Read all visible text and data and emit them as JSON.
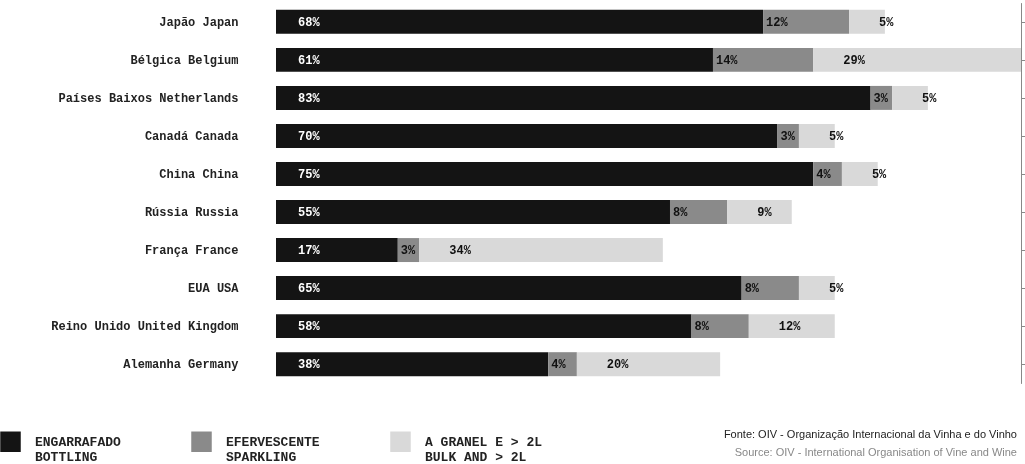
{
  "chart_data": {
    "type": "bar",
    "orientation": "horizontal",
    "stacked": true,
    "categories": [
      "Japão Japan",
      "Bélgica Belgium",
      "Países Baixos Netherlands",
      "Canadá Canada",
      "China China",
      "Rússia Russia",
      "França France",
      "EUA USA",
      "Reino Unido United Kingdom",
      "Alemanha Germany"
    ],
    "series": [
      {
        "name": "ENGARRAFADO\nBOTTLING",
        "color": "#141414",
        "values": [
          68,
          61,
          83,
          70,
          75,
          55,
          17,
          65,
          58,
          38
        ],
        "value_labels": [
          "68%",
          "61%",
          "83%",
          "70%",
          "75%",
          "55%",
          "17%",
          "65%",
          "58%",
          "38%"
        ]
      },
      {
        "name": "EFERVESCENTE\nSPARKLING",
        "color": "#8a8a8a",
        "values": [
          12,
          14,
          3,
          3,
          4,
          8,
          3,
          8,
          8,
          4
        ],
        "value_labels": [
          "12%",
          "14%",
          "3%",
          "3%",
          "4%",
          "8%",
          "3%",
          "8%",
          "8%",
          "4%"
        ]
      },
      {
        "name": "A GRANEL E > 2L\nBULK AND > 2L",
        "color": "#d9d9d9",
        "values": [
          5,
          29,
          5,
          5,
          5,
          9,
          34,
          5,
          12,
          20
        ],
        "value_labels": [
          "5%",
          "29%",
          "5%",
          "5%",
          "5%",
          "9%",
          "34%",
          "5%",
          "12%",
          "20%"
        ]
      }
    ],
    "tick_labels": "y",
    "legend": "bottom left",
    "annotations": [
      "Fonte: OIV - Organização Internacional da Vinha e do Vinho",
      "Source: OIV - International Organisation of Vine and Wine"
    ]
  }
}
